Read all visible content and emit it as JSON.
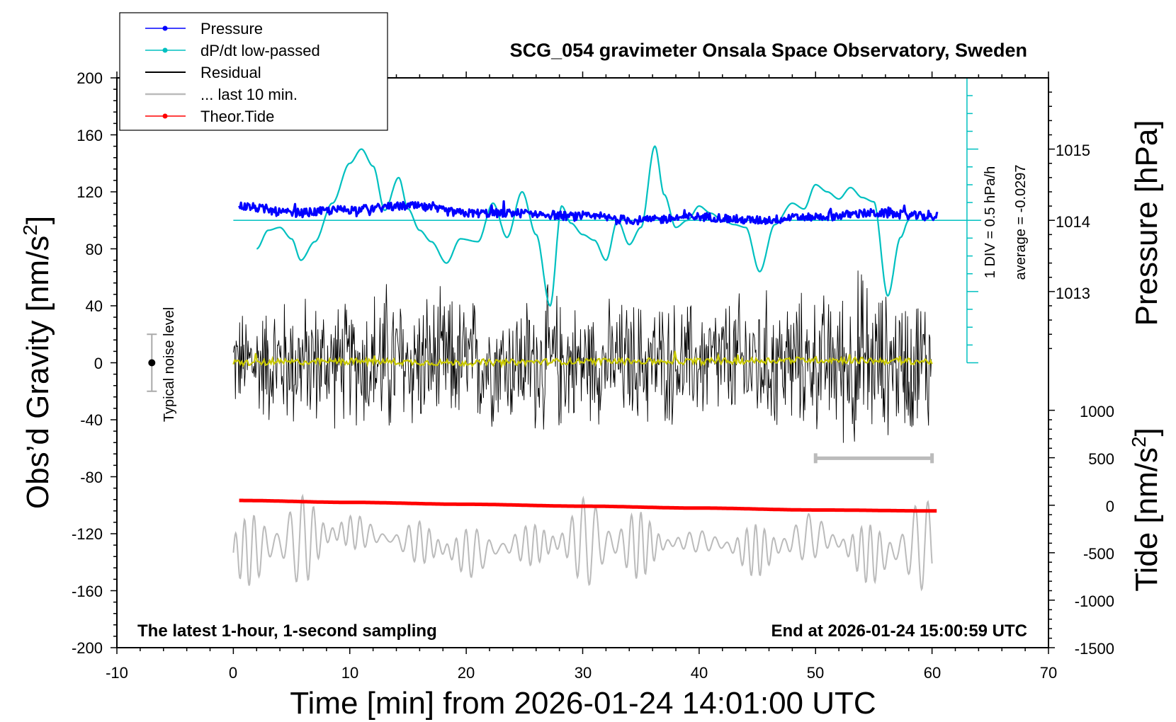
{
  "chart_data": {
    "type": "line",
    "title": "SCG_054 gravimeter Onsala Space Observatory, Sweden",
    "xlabel": "Time [min] from 2026-01-24 14:01:00 UTC",
    "ylabel_left_main": "Obs’d Gravity [nm/s",
    "ylabel_left_sup": "2",
    "ylabel_left_close": "]",
    "ylabel_right_pressure": "Pressure [hPa]",
    "ylabel_right_tide_main": "Tide [nm/s",
    "ylabel_right_tide_sup": "2",
    "ylabel_right_tide_close": "]",
    "xlim": [
      -10,
      70
    ],
    "ylim": [
      -200,
      200
    ],
    "x_ticks": [
      "-10",
      "0",
      "10",
      "20",
      "30",
      "40",
      "50",
      "60",
      "70"
    ],
    "y_ticks": [
      "200",
      "160",
      "120",
      "80",
      "40",
      "0",
      "-40",
      "-80",
      "-120",
      "-160",
      "-200"
    ],
    "pressure_axis": {
      "ticks": [
        "1015",
        "1014",
        "1013"
      ],
      "values": [
        1015,
        1014,
        1013
      ],
      "gravity_at_1014": 100,
      "gravity_per_hpa": 50
    },
    "tide_axis": {
      "ticks": [
        "1000",
        "500",
        "0",
        "-500",
        "-1000",
        "-1500"
      ],
      "values": [
        1000,
        500,
        0,
        -500,
        -1000,
        -1500
      ],
      "gravity_at_0": -100,
      "gravity_per_unit": 0.0666667
    },
    "legend": {
      "position": "top-left",
      "entries": [
        {
          "label": "Pressure",
          "color": "#0000ff",
          "marker": true
        },
        {
          "label": "dP/dt low-passed",
          "color": "#00c0c0",
          "marker": true
        },
        {
          "label": "Residual",
          "color": "#000000",
          "marker": false
        },
        {
          "label": "... last 10 min.",
          "color": "#bbbbbb",
          "marker": false
        },
        {
          "label": "Theor.Tide",
          "color": "#ff0000",
          "marker": true
        }
      ]
    },
    "dpdt_scale_label": "1 DIV = 0.5 hPa/h",
    "average_label": "average = -0.0297",
    "dpdt_scale": {
      "x": 63,
      "y_top": 200,
      "y_bottom": 0,
      "baseline": 100,
      "major_divisions": 4
    },
    "noise_label": "Typical noise level",
    "noise_bar": {
      "x": -7,
      "center": 0,
      "half_range": 20
    },
    "last10_bar": {
      "x_start": 50,
      "x_end": 60,
      "y": -67
    },
    "caption_left": "The latest 1-hour, 1-second sampling",
    "caption_right": "End at 2026-01-24 15:00:59 UTC",
    "series": [
      {
        "name": "dP/dt low-passed",
        "color": "#00c0c0",
        "x": [
          2,
          3,
          4,
          5,
          5.8,
          7,
          8.5,
          10,
          11,
          12,
          13,
          14.2,
          15,
          16,
          17,
          18.3,
          19.5,
          21,
          22.3,
          23.5,
          24.8,
          26,
          27.2,
          28.2,
          29,
          30,
          31,
          32,
          33,
          34,
          35,
          36.2,
          37,
          38,
          39,
          40,
          41,
          42,
          43,
          44,
          45.2,
          46.5,
          48,
          49,
          50,
          51,
          52,
          53,
          54,
          55,
          56.2,
          57.3,
          58
        ],
        "y": [
          80,
          93,
          95,
          87,
          72,
          85,
          112,
          140,
          150,
          138,
          107,
          130,
          108,
          93,
          85,
          70,
          87,
          85,
          112,
          88,
          120,
          90,
          40,
          110,
          98,
          90,
          86,
          72,
          100,
          83,
          95,
          152,
          118,
          95,
          100,
          110,
          105,
          100,
          97,
          95,
          64,
          97,
          112,
          108,
          125,
          120,
          115,
          123,
          116,
          113,
          47,
          88,
          100
        ]
      },
      {
        "name": "Pressure",
        "color": "#0000ff",
        "x": [
          0.5,
          5,
          10,
          15,
          20,
          25,
          30,
          35,
          40,
          45,
          50,
          55,
          60.5
        ],
        "y": [
          1014.2,
          1014.1,
          1014.15,
          1014.2,
          1014.1,
          1014.1,
          1014.05,
          1014.0,
          1014.05,
          1014.0,
          1014.05,
          1014.1,
          1014.05
        ]
      },
      {
        "name": "Residual",
        "color": "#000000",
        "x": [
          0,
          5,
          10,
          13,
          15,
          20,
          23,
          27,
          30,
          35,
          40,
          45,
          50,
          52,
          53.5,
          56,
          60
        ],
        "envelope": [
          42,
          55,
          50,
          68,
          58,
          55,
          50,
          60,
          48,
          52,
          50,
          58,
          55,
          60,
          78,
          58,
          60
        ]
      },
      {
        "name": "Residual low-passed",
        "color": "#c8c800",
        "x": [
          0,
          10,
          20,
          30,
          40,
          50,
          60
        ],
        "y": [
          0,
          1,
          0,
          1,
          1,
          2,
          1
        ]
      },
      {
        "name": "... last 10 min.",
        "color": "#bbbbbb",
        "x": [
          0,
          5,
          10,
          15,
          20,
          25,
          30,
          35,
          40,
          45,
          50,
          55,
          60
        ],
        "y": [
          -500,
          -380,
          -280,
          -380,
          -500,
          -420,
          -380,
          -420,
          -380,
          -480,
          -330,
          -520,
          -400
        ]
      },
      {
        "name": "Theor.Tide",
        "color": "#ff0000",
        "x": [
          0.5,
          10,
          20,
          30,
          40,
          50,
          60.5
        ],
        "y": [
          50,
          30,
          10,
          -10,
          -30,
          -50,
          -60
        ]
      }
    ]
  }
}
